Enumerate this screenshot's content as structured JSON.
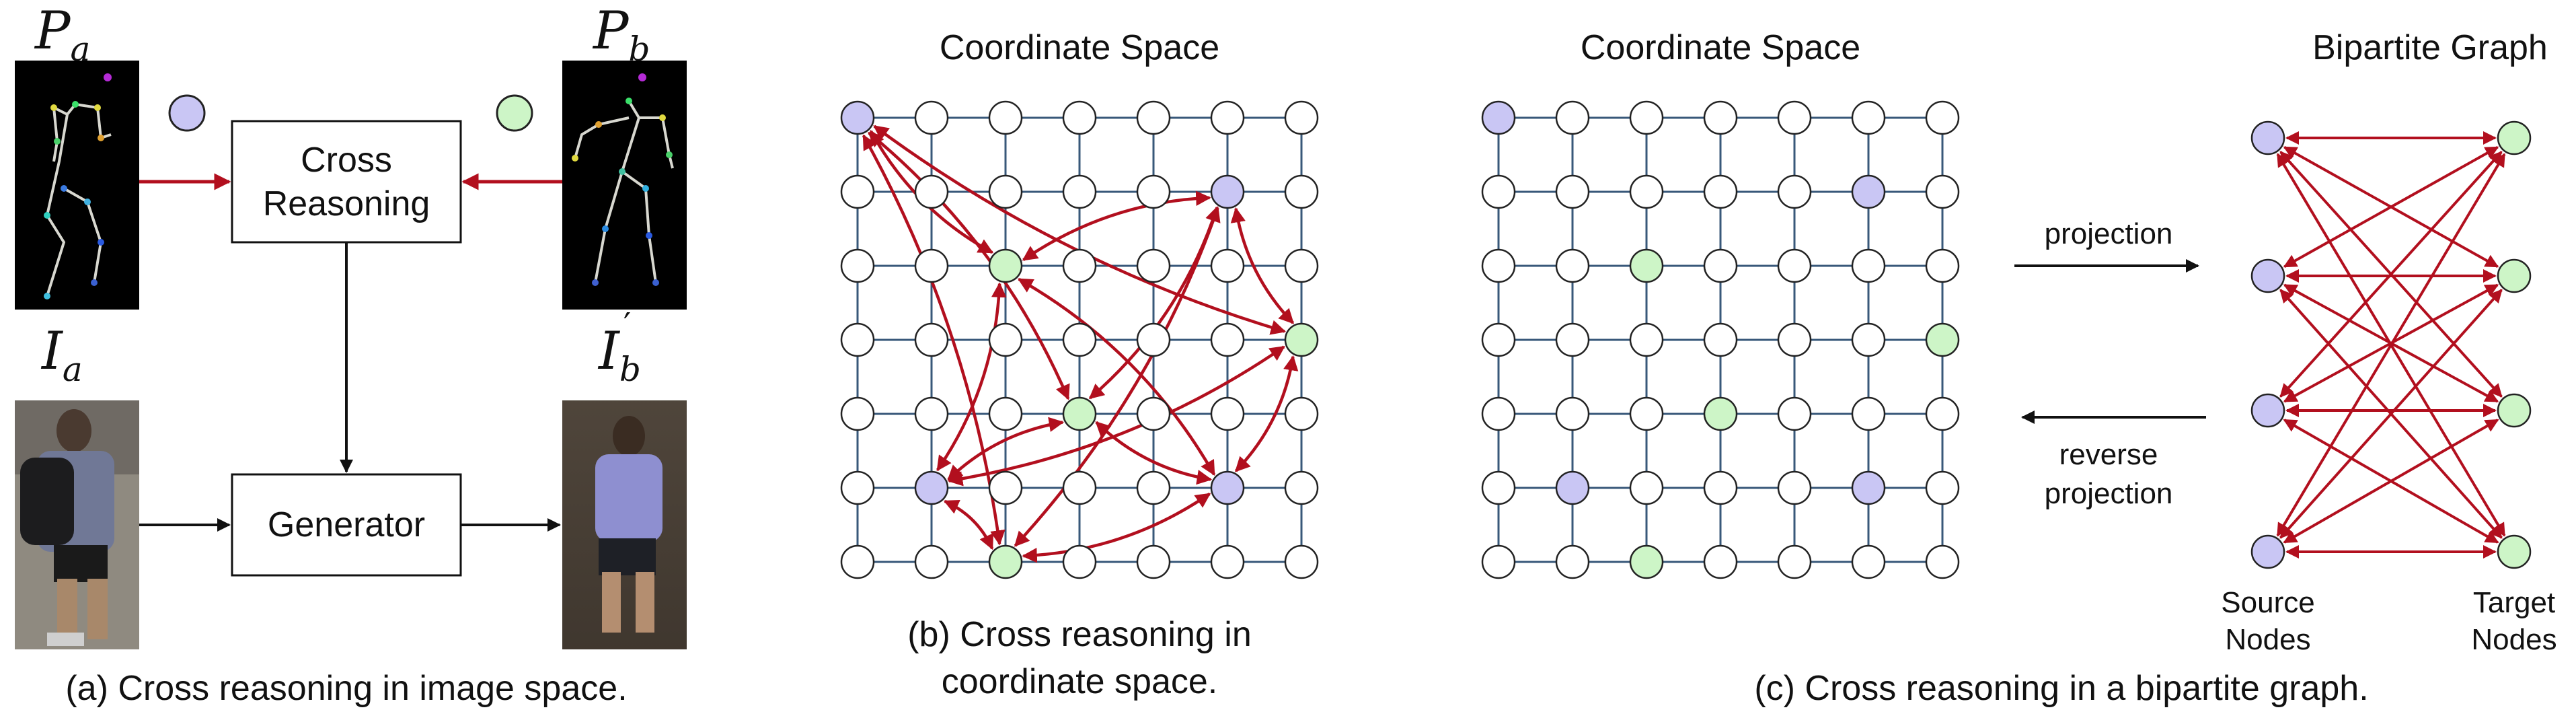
{
  "colors": {
    "source": "#c9c6f4",
    "target": "#cdf5c7",
    "empty": "#ffffff",
    "node_stroke": "#222222",
    "grid_line": "#38587a",
    "arrow": "#b20f1e",
    "flow_arrow": "#111111",
    "pose_bg": "#000000"
  },
  "panel_a": {
    "pose_a_label": {
      "base": "P",
      "sub": "a"
    },
    "pose_b_label": {
      "base": "P",
      "sub": "b"
    },
    "image_a_label": {
      "base": "I",
      "sub": "a"
    },
    "image_b_label": {
      "base": "I",
      "sub": "b",
      "sup": "′"
    },
    "cross_reasoning_box": [
      "Cross",
      "Reasoning"
    ],
    "generator_box": "Generator",
    "caption": "(a) Cross reasoning in image space."
  },
  "panel_b": {
    "title": "Coordinate Space",
    "caption": [
      "(b) Cross reasoning in",
      "coordinate space."
    ]
  },
  "panel_c": {
    "title_grid": "Coordinate Space",
    "title_graph": "Bipartite Graph",
    "projection_label": "projection",
    "reverse_label": [
      "reverse",
      "projection"
    ],
    "source_label": [
      "Source",
      "Nodes"
    ],
    "target_label": [
      "Target",
      "Nodes"
    ],
    "caption": "(c) Cross reasoning in a bipartite graph."
  },
  "grid": {
    "rows": 7,
    "cols": 7,
    "source_cells": [
      [
        0,
        0
      ],
      [
        1,
        5
      ],
      [
        5,
        1
      ],
      [
        5,
        5
      ]
    ],
    "target_cells": [
      [
        2,
        2
      ],
      [
        3,
        6
      ],
      [
        4,
        3
      ],
      [
        6,
        2
      ]
    ]
  },
  "panel_b_edges": [
    [
      [
        0,
        0
      ],
      [
        2,
        2
      ]
    ],
    [
      [
        0,
        0
      ],
      [
        4,
        3
      ]
    ],
    [
      [
        0,
        0
      ],
      [
        3,
        6
      ]
    ],
    [
      [
        0,
        0
      ],
      [
        6,
        2
      ]
    ],
    [
      [
        1,
        5
      ],
      [
        2,
        2
      ]
    ],
    [
      [
        1,
        5
      ],
      [
        4,
        3
      ]
    ],
    [
      [
        1,
        5
      ],
      [
        3,
        6
      ]
    ],
    [
      [
        1,
        5
      ],
      [
        6,
        2
      ]
    ],
    [
      [
        5,
        1
      ],
      [
        2,
        2
      ]
    ],
    [
      [
        5,
        1
      ],
      [
        4,
        3
      ]
    ],
    [
      [
        5,
        1
      ],
      [
        3,
        6
      ]
    ],
    [
      [
        5,
        1
      ],
      [
        6,
        2
      ]
    ],
    [
      [
        5,
        5
      ],
      [
        2,
        2
      ]
    ],
    [
      [
        5,
        5
      ],
      [
        4,
        3
      ]
    ],
    [
      [
        5,
        5
      ],
      [
        3,
        6
      ]
    ],
    [
      [
        5,
        5
      ],
      [
        6,
        2
      ]
    ]
  ],
  "bipartite": {
    "source_count": 4,
    "target_count": 4
  }
}
